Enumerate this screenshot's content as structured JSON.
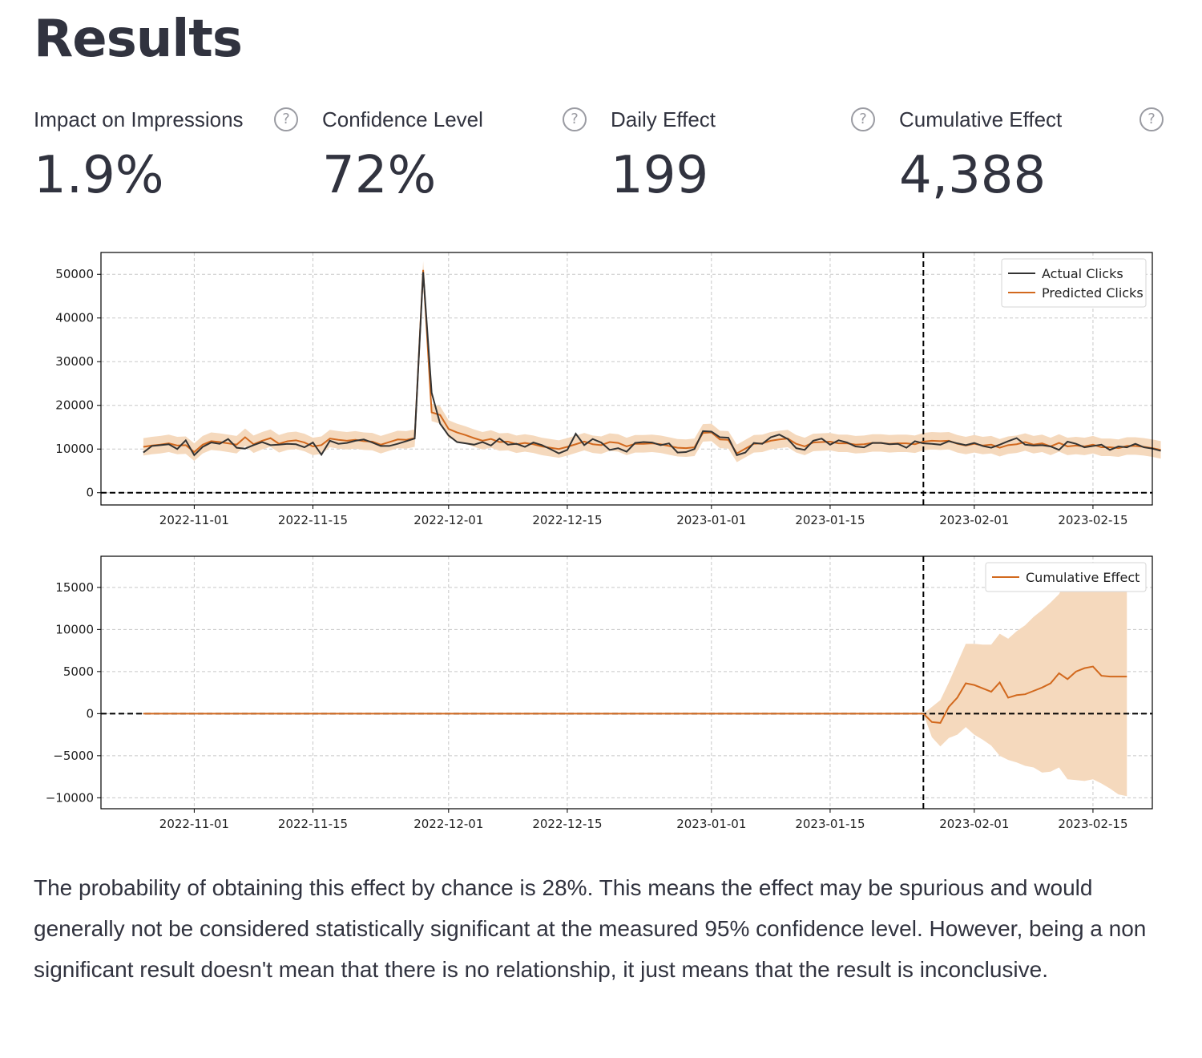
{
  "title": "Results",
  "metrics": [
    {
      "label": "Impact on Impressions",
      "value": "1.9%",
      "help_icon": "question-circle-icon"
    },
    {
      "label": "Confidence Level",
      "value": "72%",
      "help_icon": "question-circle-icon"
    },
    {
      "label": "Daily Effect",
      "value": "199",
      "help_icon": "question-circle-icon"
    },
    {
      "label": "Cumulative Effect",
      "value": "4,388",
      "help_icon": "question-circle-icon"
    }
  ],
  "chart_data": [
    {
      "type": "line",
      "x_range": [
        "2022-10-21",
        "2023-02-22"
      ],
      "ylim": [
        -2800,
        55000
      ],
      "yticks": [
        0,
        10000,
        20000,
        30000,
        40000,
        50000
      ],
      "xticks": [
        "2022-11-01",
        "2022-11-15",
        "2022-12-01",
        "2022-12-15",
        "2023-01-01",
        "2023-01-15",
        "2023-02-01",
        "2023-02-15"
      ],
      "intervention_date": "2023-01-26",
      "grid": true,
      "legend_position": "top-right",
      "start_date": "2022-10-26",
      "series": [
        {
          "name": "Actual Clicks",
          "color": "#333333",
          "values": [
            9200,
            10700,
            10900,
            11100,
            10000,
            12000,
            8600,
            10500,
            11500,
            11200,
            12300,
            10300,
            10100,
            10900,
            11600,
            10900,
            11000,
            11200,
            11100,
            10400,
            11500,
            8700,
            11900,
            11200,
            11400,
            11900,
            12200,
            11500,
            10700,
            10700,
            11200,
            11800,
            12400,
            50500,
            22900,
            15800,
            13100,
            11600,
            11300,
            11000,
            11600,
            10800,
            12400,
            11000,
            11200,
            10500,
            11500,
            10900,
            10000,
            9000,
            9800,
            13500,
            10900,
            12300,
            11500,
            9800,
            10200,
            9400,
            11400,
            11600,
            11500,
            10900,
            11300,
            9200,
            9300,
            10000,
            14100,
            14000,
            12700,
            12600,
            8600,
            9200,
            11400,
            11200,
            12700,
            13300,
            12300,
            10200,
            9800,
            11900,
            12400,
            11000,
            12000,
            11500,
            10600,
            10400,
            11400,
            11400,
            11100,
            11200,
            10300,
            11800,
            11300,
            11200,
            11000,
            11800,
            11300,
            10900,
            11400,
            10700,
            10300,
            11000,
            11800,
            12500,
            11000,
            10800,
            10900,
            10600,
            9800,
            11700,
            11200,
            10400,
            10700,
            11000,
            9800,
            10600,
            10400,
            11200,
            10400,
            10100,
            9600
          ]
        },
        {
          "name": "Predicted Clicks",
          "color": "#d2691e",
          "values": [
            10500,
            10800,
            11000,
            11300,
            10800,
            10900,
            9300,
            11000,
            11800,
            11600,
            11300,
            11000,
            12700,
            11100,
            11900,
            12500,
            11200,
            11800,
            12000,
            11500,
            10600,
            10900,
            12400,
            12100,
            11900,
            12100,
            11800,
            11700,
            11000,
            11600,
            12200,
            12100,
            12500,
            51000,
            18400,
            17800,
            14600,
            13800,
            13200,
            12500,
            11900,
            12300,
            11600,
            11700,
            11100,
            11400,
            11100,
            10600,
            10300,
            10000,
            10500,
            11100,
            11700,
            11100,
            10900,
            11600,
            11400,
            10600,
            11200,
            11200,
            11300,
            11100,
            10700,
            10300,
            10200,
            10400,
            13700,
            13800,
            12200,
            12100,
            9000,
            10100,
            11200,
            11300,
            11900,
            12200,
            12400,
            11200,
            10600,
            11500,
            11600,
            11700,
            11300,
            11300,
            11000,
            11100,
            11400,
            11400,
            11200,
            11300,
            11300,
            11100,
            11700,
            11900,
            11800,
            11900,
            11200,
            10800,
            11200,
            10800,
            11000,
            10300,
            10900,
            11100,
            11600,
            11000,
            11300,
            10600,
            11400,
            10600,
            10800,
            10600,
            11000,
            10400,
            10400,
            10200,
            10700,
            10700,
            10500,
            10200,
            9800
          ]
        }
      ],
      "band": {
        "label": "prediction interval",
        "color": "#f5d9bd",
        "half_width": 2000
      }
    },
    {
      "type": "line",
      "x_range": [
        "2022-10-21",
        "2023-02-22"
      ],
      "ylim": [
        -11300,
        18700
      ],
      "yticks": [
        -10000,
        -5000,
        0,
        5000,
        10000,
        15000
      ],
      "ytick_labels": [
        "−10000",
        "−5000",
        "0",
        "5000",
        "10000",
        "15000"
      ],
      "xticks": [
        "2022-11-01",
        "2022-11-15",
        "2022-12-01",
        "2022-12-15",
        "2023-01-01",
        "2023-01-15",
        "2023-02-01",
        "2023-02-15"
      ],
      "intervention_date": "2023-01-26",
      "grid": true,
      "legend_position": "top-right",
      "series": [
        {
          "name": "Cumulative Effect",
          "color": "#d2691e",
          "dates": [
            "2022-10-26",
            "2023-01-26"
          ],
          "values": [
            0,
            0
          ]
        },
        {
          "name": "",
          "color": "#d2691e",
          "dates": [
            "2023-01-26",
            "2023-01-27",
            "2023-01-28",
            "2023-01-29",
            "2023-01-30",
            "2023-01-31",
            "2023-02-01",
            "2023-02-02",
            "2023-02-03",
            "2023-02-04",
            "2023-02-05",
            "2023-02-06",
            "2023-02-07",
            "2023-02-08",
            "2023-02-09",
            "2023-02-10",
            "2023-02-11",
            "2023-02-12",
            "2023-02-13",
            "2023-02-14",
            "2023-02-15",
            "2023-02-16",
            "2023-02-17",
            "2023-02-18",
            "2023-02-19"
          ],
          "values": [
            0,
            -1000,
            -1100,
            800,
            1900,
            3600,
            3400,
            3000,
            2600,
            3700,
            1900,
            2200,
            2300,
            2700,
            3100,
            3600,
            4800,
            4100,
            5000,
            5400,
            5600,
            4500,
            4400,
            4400,
            4400
          ]
        }
      ],
      "band": {
        "color": "#f5d9bd",
        "dates": [
          "2023-01-26",
          "2023-01-27",
          "2023-01-28",
          "2023-01-29",
          "2023-01-30",
          "2023-01-31",
          "2023-02-01",
          "2023-02-02",
          "2023-02-03",
          "2023-02-04",
          "2023-02-05",
          "2023-02-06",
          "2023-02-07",
          "2023-02-08",
          "2023-02-09",
          "2023-02-10",
          "2023-02-11",
          "2023-02-12",
          "2023-02-13",
          "2023-02-14",
          "2023-02-15",
          "2023-02-16",
          "2023-02-17",
          "2023-02-18",
          "2023-02-19"
        ],
        "upper": [
          0,
          800,
          1600,
          3700,
          6000,
          8300,
          8300,
          8200,
          8200,
          9500,
          8900,
          9800,
          10500,
          11500,
          12300,
          13200,
          14200,
          16200,
          16700,
          17000,
          17000,
          17000,
          17000,
          17000,
          17000
        ],
        "lower": [
          0,
          -2800,
          -3900,
          -2900,
          -2500,
          -1600,
          -2500,
          -3100,
          -3800,
          -5000,
          -5500,
          -5800,
          -6200,
          -6400,
          -7000,
          -6900,
          -6400,
          -7800,
          -7900,
          -8000,
          -7800,
          -8300,
          -8900,
          -9600,
          -9800
        ]
      }
    }
  ],
  "explanation": "The probability of obtaining this effect by chance is 28%. This means the effect may be spurious and would generally not be considered statistically significant at the measured 95% confidence level. However, being a non significant result doesn't mean that there is no relationship, it just means that the result is inconclusive."
}
